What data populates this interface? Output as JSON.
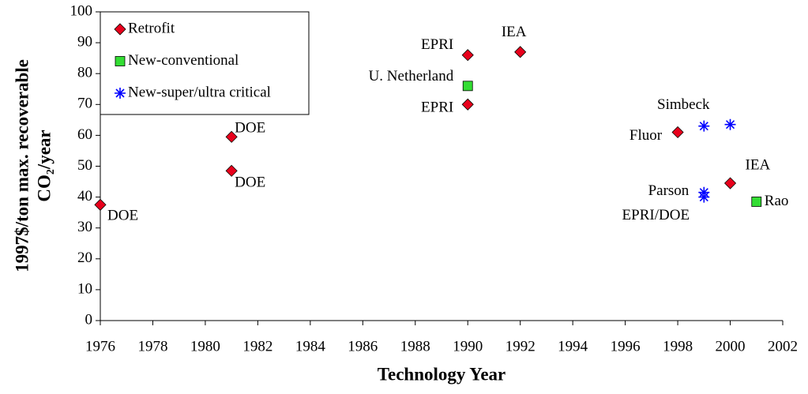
{
  "chart_data": {
    "type": "scatter",
    "xlabel": "Technology Year",
    "ylabel": [
      "1997$/ton max. recoverable",
      "CO₂/year"
    ],
    "xlim": [
      1976,
      2002
    ],
    "xticks": [
      1976,
      1978,
      1980,
      1982,
      1984,
      1986,
      1988,
      1990,
      1992,
      1994,
      1996,
      1998,
      2000,
      2002
    ],
    "ylim": [
      0,
      100
    ],
    "yticks": [
      0,
      10,
      20,
      30,
      40,
      50,
      60,
      70,
      80,
      90,
      100
    ],
    "legend": "top-left",
    "series": [
      {
        "name": "Retrofit",
        "color": "#e8001c",
        "marker": "diamond",
        "x": [
          1976,
          1981,
          1981,
          1990,
          1990,
          1992,
          1998,
          2000
        ],
        "values": [
          37.5,
          59.5,
          48.5,
          86,
          70,
          87,
          61,
          44.5
        ],
        "labels": [
          "DOE",
          "DOE",
          "DOE",
          "EPRI",
          "EPRI",
          "IEA",
          "Fluor",
          "IEA"
        ]
      },
      {
        "name": "New-conventional",
        "color": "#33dd33",
        "marker": "square",
        "x": [
          1990,
          2001
        ],
        "values": [
          76,
          38.5
        ],
        "labels": [
          "U. Netherland",
          "Rao"
        ]
      },
      {
        "name": "New-super/ultra critical",
        "color": "#0000ff",
        "marker": "asterisk",
        "x": [
          1999,
          2000,
          1999,
          1999
        ],
        "values": [
          63,
          63.5,
          41.5,
          40
        ],
        "labels": [
          "Simbeck",
          null,
          "Parson",
          "EPRI/DOE"
        ]
      }
    ]
  }
}
